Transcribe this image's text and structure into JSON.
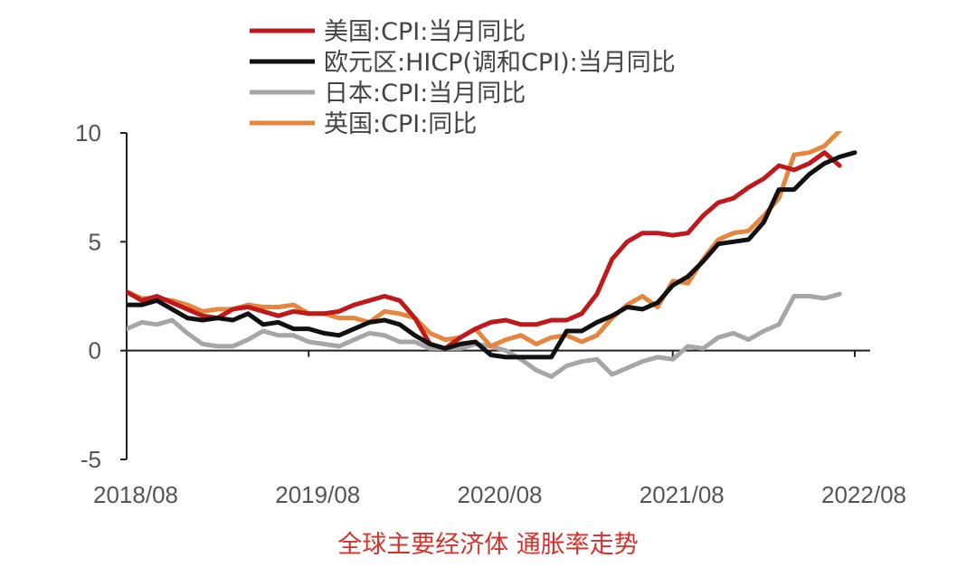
{
  "caption": "全球主要经济体 通胀率走势",
  "chart_data": {
    "type": "line",
    "title": "",
    "xlabel": "",
    "ylabel": "",
    "ylim": [
      -5,
      10
    ],
    "yticks": [
      10,
      5,
      0,
      -5
    ],
    "x_tick_labels": [
      "2018/08",
      "2019/08",
      "2020/08",
      "2021/08",
      "2022/08"
    ],
    "x_start": "2018/08",
    "x_end": "2022/08",
    "grid": false,
    "legend_position": "top",
    "series": [
      {
        "name": "美国:CPI:当月同比",
        "color": "#c0191c",
        "x": [
          "2018/08",
          "2018/09",
          "2018/10",
          "2018/11",
          "2018/12",
          "2019/01",
          "2019/02",
          "2019/03",
          "2019/04",
          "2019/05",
          "2019/06",
          "2019/07",
          "2019/08",
          "2019/09",
          "2019/10",
          "2019/11",
          "2019/12",
          "2020/01",
          "2020/02",
          "2020/03",
          "2020/04",
          "2020/05",
          "2020/06",
          "2020/07",
          "2020/08",
          "2020/09",
          "2020/10",
          "2020/11",
          "2020/12",
          "2021/01",
          "2021/02",
          "2021/03",
          "2021/04",
          "2021/05",
          "2021/06",
          "2021/07",
          "2021/08",
          "2021/09",
          "2021/10",
          "2021/11",
          "2021/12",
          "2022/01",
          "2022/02",
          "2022/03",
          "2022/04",
          "2022/05",
          "2022/06",
          "2022/07"
        ],
        "values": [
          2.7,
          2.3,
          2.5,
          2.2,
          1.9,
          1.6,
          1.5,
          1.9,
          2.0,
          1.8,
          1.6,
          1.8,
          1.7,
          1.7,
          1.8,
          2.1,
          2.3,
          2.5,
          2.3,
          1.5,
          0.3,
          0.1,
          0.6,
          1.0,
          1.3,
          1.4,
          1.2,
          1.2,
          1.4,
          1.4,
          1.7,
          2.6,
          4.2,
          5.0,
          5.4,
          5.4,
          5.3,
          5.4,
          6.2,
          6.8,
          7.0,
          7.5,
          7.9,
          8.5,
          8.3,
          8.6,
          9.1,
          8.5
        ]
      },
      {
        "name": "欧元区:HICP(调和CPI):当月同比",
        "color": "#111111",
        "x": [
          "2018/08",
          "2018/09",
          "2018/10",
          "2018/11",
          "2018/12",
          "2019/01",
          "2019/02",
          "2019/03",
          "2019/04",
          "2019/05",
          "2019/06",
          "2019/07",
          "2019/08",
          "2019/09",
          "2019/10",
          "2019/11",
          "2019/12",
          "2020/01",
          "2020/02",
          "2020/03",
          "2020/04",
          "2020/05",
          "2020/06",
          "2020/07",
          "2020/08",
          "2020/09",
          "2020/10",
          "2020/11",
          "2020/12",
          "2021/01",
          "2021/02",
          "2021/03",
          "2021/04",
          "2021/05",
          "2021/06",
          "2021/07",
          "2021/08",
          "2021/09",
          "2021/10",
          "2021/11",
          "2021/12",
          "2022/01",
          "2022/02",
          "2022/03",
          "2022/04",
          "2022/05",
          "2022/06",
          "2022/07",
          "2022/08"
        ],
        "values": [
          2.1,
          2.1,
          2.3,
          1.9,
          1.5,
          1.4,
          1.5,
          1.4,
          1.7,
          1.2,
          1.3,
          1.0,
          1.0,
          0.8,
          0.7,
          1.0,
          1.3,
          1.4,
          1.2,
          0.7,
          0.3,
          0.1,
          0.3,
          0.4,
          -0.2,
          -0.3,
          -0.3,
          -0.3,
          -0.3,
          0.9,
          0.9,
          1.3,
          1.6,
          2.0,
          1.9,
          2.2,
          3.0,
          3.4,
          4.1,
          4.9,
          5.0,
          5.1,
          5.9,
          7.4,
          7.4,
          8.1,
          8.6,
          8.9,
          9.1
        ]
      },
      {
        "name": "日本:CPI:当月同比",
        "color": "#a6a6a6",
        "x": [
          "2018/08",
          "2018/09",
          "2018/10",
          "2018/11",
          "2018/12",
          "2019/01",
          "2019/02",
          "2019/03",
          "2019/04",
          "2019/05",
          "2019/06",
          "2019/07",
          "2019/08",
          "2019/09",
          "2019/10",
          "2019/11",
          "2019/12",
          "2020/01",
          "2020/02",
          "2020/03",
          "2020/04",
          "2020/05",
          "2020/06",
          "2020/07",
          "2020/08",
          "2020/09",
          "2020/10",
          "2020/11",
          "2020/12",
          "2021/01",
          "2021/02",
          "2021/03",
          "2021/04",
          "2021/05",
          "2021/06",
          "2021/07",
          "2021/08",
          "2021/09",
          "2021/10",
          "2021/11",
          "2021/12",
          "2022/01",
          "2022/02",
          "2022/03",
          "2022/04",
          "2022/05",
          "2022/06",
          "2022/07"
        ],
        "values": [
          1.0,
          1.3,
          1.2,
          1.4,
          0.8,
          0.3,
          0.2,
          0.2,
          0.5,
          0.9,
          0.7,
          0.7,
          0.4,
          0.3,
          0.2,
          0.5,
          0.8,
          0.7,
          0.4,
          0.4,
          0.1,
          0.1,
          0.1,
          0.3,
          0.2,
          0.0,
          -0.4,
          -0.9,
          -1.2,
          -0.7,
          -0.5,
          -0.4,
          -1.1,
          -0.8,
          -0.5,
          -0.3,
          -0.4,
          0.2,
          0.1,
          0.6,
          0.8,
          0.5,
          0.9,
          1.2,
          2.5,
          2.5,
          2.4,
          2.6
        ]
      },
      {
        "name": "英国:CPI:同比",
        "color": "#e8853d",
        "x": [
          "2018/08",
          "2018/09",
          "2018/10",
          "2018/11",
          "2018/12",
          "2019/01",
          "2019/02",
          "2019/03",
          "2019/04",
          "2019/05",
          "2019/06",
          "2019/07",
          "2019/08",
          "2019/09",
          "2019/10",
          "2019/11",
          "2019/12",
          "2020/01",
          "2020/02",
          "2020/03",
          "2020/04",
          "2020/05",
          "2020/06",
          "2020/07",
          "2020/08",
          "2020/09",
          "2020/10",
          "2020/11",
          "2020/12",
          "2021/01",
          "2021/02",
          "2021/03",
          "2021/04",
          "2021/05",
          "2021/06",
          "2021/07",
          "2021/08",
          "2021/09",
          "2021/10",
          "2021/11",
          "2021/12",
          "2022/01",
          "2022/02",
          "2022/03",
          "2022/04",
          "2022/05",
          "2022/06",
          "2022/07"
        ],
        "values": [
          2.7,
          2.4,
          2.4,
          2.3,
          2.1,
          1.8,
          1.9,
          1.9,
          2.1,
          2.0,
          2.0,
          2.1,
          1.7,
          1.7,
          1.5,
          1.5,
          1.3,
          1.8,
          1.7,
          1.5,
          0.8,
          0.5,
          0.6,
          1.0,
          0.2,
          0.5,
          0.7,
          0.3,
          0.6,
          0.7,
          0.4,
          0.7,
          1.5,
          2.1,
          2.5,
          2.0,
          3.2,
          3.1,
          4.2,
          5.1,
          5.4,
          5.5,
          6.2,
          7.0,
          9.0,
          9.1,
          9.4,
          10.1
        ]
      }
    ]
  }
}
